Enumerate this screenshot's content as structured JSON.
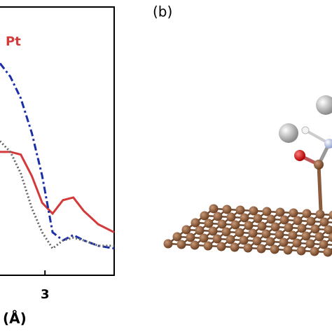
{
  "chart_data": {
    "type": "line",
    "x": [
      2.35,
      2.5,
      2.65,
      2.81,
      2.96,
      3.11,
      3.26,
      3.41,
      3.56,
      3.77,
      4.0
    ],
    "series": [
      {
        "name": "Pt",
        "color": "#d43a3a",
        "style": "solid",
        "values": [
          0.46,
          0.46,
          0.45,
          0.37,
          0.27,
          0.23,
          0.28,
          0.29,
          0.24,
          0.19,
          0.16
        ]
      },
      {
        "color": "#1b2fa8",
        "style": "dashdot",
        "values": [
          0.79,
          0.74,
          0.66,
          0.53,
          0.37,
          0.16,
          0.13,
          0.15,
          0.13,
          0.11,
          0.1
        ]
      },
      {
        "color": "#666666",
        "style": "dotted",
        "values": [
          0.5,
          0.46,
          0.38,
          0.25,
          0.16,
          0.1,
          0.13,
          0.14,
          0.13,
          0.11,
          0.11
        ]
      }
    ],
    "xlabel": "(Å)",
    "xlim": [
      2.35,
      4.0
    ],
    "xticks": [
      3
    ],
    "ylim": [
      0,
      1
    ]
  },
  "panel_label": "(b)"
}
